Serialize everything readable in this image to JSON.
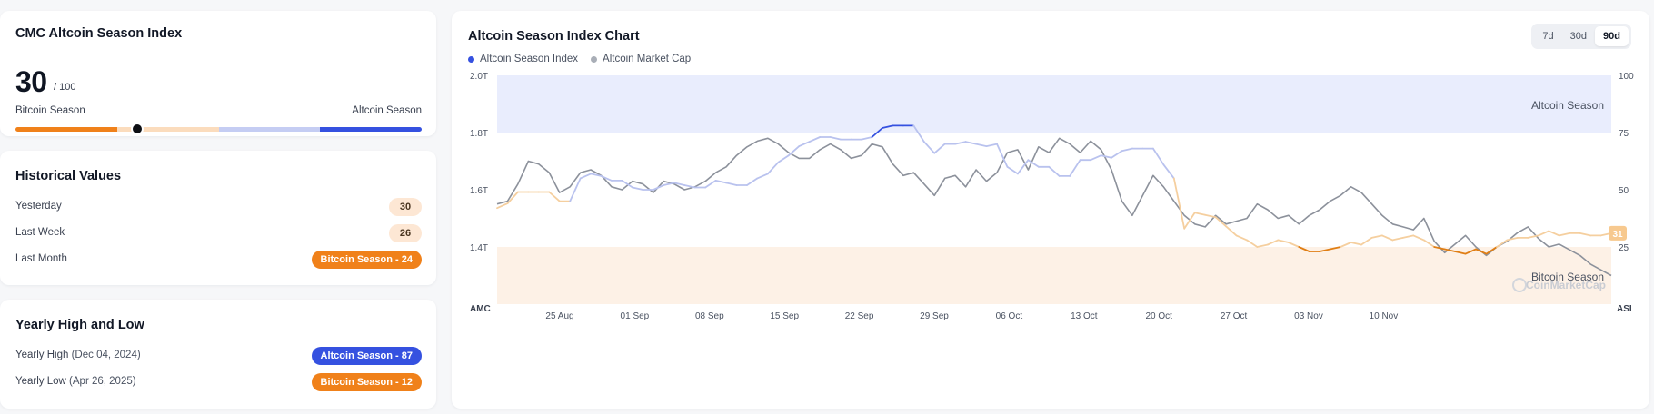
{
  "index_card": {
    "title": "CMC Altcoin Season Index",
    "value": "30",
    "max": "/ 100",
    "left_label": "Bitcoin Season",
    "right_label": "Altcoin Season",
    "current_level": 0.3
  },
  "historical": {
    "title": "Historical Values",
    "rows": [
      {
        "label": "Yesterday",
        "value": "30"
      },
      {
        "label": "Last Week",
        "value": "26"
      },
      {
        "label": "Last Month",
        "value": "Bitcoin Season - 24"
      }
    ]
  },
  "yearly": {
    "title": "Yearly High and Low",
    "high_label": "Yearly High",
    "high_date": "(Dec 04, 2024)",
    "high_value": "Altcoin Season - 87",
    "low_label": "Yearly Low",
    "low_date": "(Apr 26, 2025)",
    "low_value": "Bitcoin Season - 12"
  },
  "chart_card": {
    "title": "Altcoin Season Index Chart",
    "legend": [
      {
        "label": "Altcoin Season Index",
        "color": "#3551e0"
      },
      {
        "label": "Altcoin Market Cap",
        "color": "#9aa0ab"
      }
    ],
    "ranges": [
      "7d",
      "30d",
      "90d"
    ],
    "active_range": "90d",
    "watermark": "CoinMarketCap"
  },
  "colors": {
    "bitcoin": "#f0811a",
    "altcoin": "#3551e0",
    "bitcoin_zone": "#fdf1e6",
    "altcoin_zone": "#e9edfd",
    "market_cap_line": "#8c919b"
  },
  "chart_data": {
    "type": "line",
    "title": "Altcoin Season Index Chart",
    "left_axis": {
      "name": "AMC",
      "ticks": [
        "1.4T",
        "1.6T",
        "1.8T",
        "2.0T"
      ],
      "range": [
        1.2,
        2.0
      ]
    },
    "right_axis": {
      "name": "ASI",
      "ticks": [
        "25",
        "50",
        "75",
        "100"
      ],
      "range": [
        0,
        100
      ]
    },
    "x_ticks": [
      "25 Aug",
      "01 Sep",
      "08 Sep",
      "15 Sep",
      "22 Sep",
      "29 Sep",
      "06 Oct",
      "13 Oct",
      "20 Oct",
      "27 Oct",
      "03 Nov",
      "10 Nov"
    ],
    "zones": [
      {
        "label": "Altcoin Season",
        "from": 75,
        "to": 100
      },
      {
        "label": "Bitcoin Season",
        "from": 0,
        "to": 25
      }
    ],
    "last_value_label": "31",
    "series": [
      {
        "name": "Altcoin Season Index",
        "axis": "right",
        "values": [
          42,
          44,
          49,
          49,
          49,
          49,
          45,
          45,
          55,
          57,
          56,
          54,
          54,
          51,
          50,
          50,
          52,
          53,
          52,
          51,
          51,
          54,
          53,
          52,
          52,
          55,
          57,
          62,
          65,
          69,
          71,
          73,
          73,
          72,
          72,
          72,
          73,
          77,
          78,
          78,
          78,
          71,
          66,
          70,
          70,
          71,
          70,
          69,
          70,
          60,
          57,
          63,
          60,
          60,
          56,
          56,
          63,
          63,
          65,
          64,
          67,
          68,
          68,
          68,
          61,
          55,
          33,
          40,
          39,
          38,
          34,
          30,
          28,
          25,
          26,
          28,
          27,
          25,
          23,
          23,
          24,
          25,
          27,
          26,
          29,
          30,
          28,
          29,
          30,
          28,
          25,
          24,
          23,
          22,
          24,
          22,
          25,
          28,
          29,
          29,
          30,
          32,
          30,
          31,
          31,
          30,
          30,
          31
        ]
      },
      {
        "name": "Altcoin Market Cap",
        "axis": "left",
        "values": [
          1.55,
          1.56,
          1.62,
          1.7,
          1.69,
          1.66,
          1.59,
          1.61,
          1.66,
          1.67,
          1.65,
          1.61,
          1.6,
          1.63,
          1.62,
          1.59,
          1.63,
          1.62,
          1.6,
          1.61,
          1.63,
          1.66,
          1.68,
          1.72,
          1.75,
          1.77,
          1.78,
          1.76,
          1.73,
          1.71,
          1.71,
          1.74,
          1.76,
          1.74,
          1.71,
          1.72,
          1.76,
          1.75,
          1.69,
          1.65,
          1.66,
          1.62,
          1.58,
          1.64,
          1.65,
          1.61,
          1.67,
          1.63,
          1.66,
          1.73,
          1.74,
          1.67,
          1.75,
          1.73,
          1.78,
          1.76,
          1.73,
          1.77,
          1.74,
          1.67,
          1.56,
          1.51,
          1.58,
          1.65,
          1.61,
          1.56,
          1.51,
          1.48,
          1.47,
          1.51,
          1.48,
          1.49,
          1.5,
          1.55,
          1.53,
          1.5,
          1.51,
          1.48,
          1.51,
          1.53,
          1.56,
          1.58,
          1.61,
          1.59,
          1.55,
          1.51,
          1.48,
          1.47,
          1.46,
          1.5,
          1.42,
          1.38,
          1.41,
          1.44,
          1.4,
          1.37,
          1.4,
          1.42,
          1.45,
          1.47,
          1.43,
          1.4,
          1.41,
          1.39,
          1.37,
          1.34,
          1.32,
          1.3
        ]
      }
    ],
    "grid": false,
    "legend_position": "top-left"
  }
}
